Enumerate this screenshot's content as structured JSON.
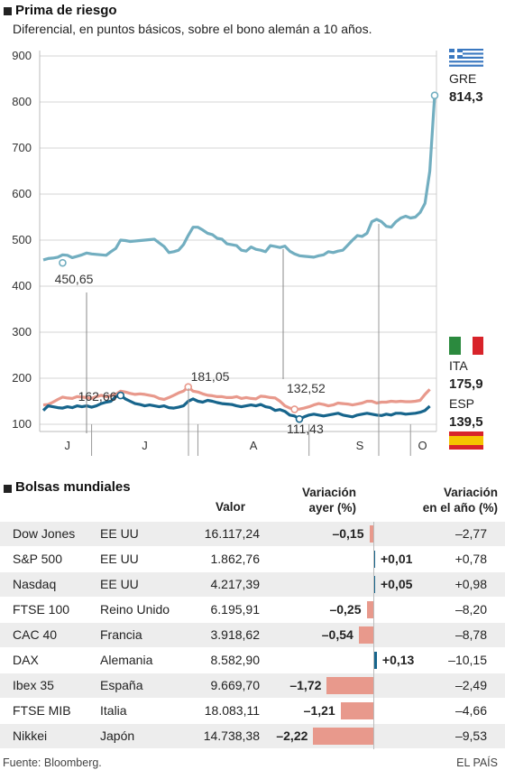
{
  "header": {
    "title": "Prima de riesgo",
    "subtitle": "Diferencial, en puntos básicos, sobre el bono alemán a 10 años."
  },
  "chart_data": {
    "type": "line",
    "title": "Prima de riesgo",
    "subtitle": "Diferencial, en puntos básicos, sobre el bono alemán a 10 años.",
    "ylim": [
      95,
      905
    ],
    "y_ticks": [
      100,
      200,
      300,
      400,
      500,
      600,
      700,
      800,
      900
    ],
    "x_month_labels": [
      "J",
      "J",
      "A",
      "S",
      "O"
    ],
    "grid": "horizontal",
    "colors": {
      "GRE": "#72aec0",
      "ITA": "#e8998c",
      "ESP": "#17658c"
    },
    "series": [
      {
        "name": "GRE",
        "value_label": "814,3",
        "values": [
          457,
          460,
          461,
          463,
          468,
          467,
          462,
          465,
          468,
          472,
          470,
          469,
          468,
          467,
          475,
          482,
          500,
          499,
          497,
          498,
          499,
          500,
          501,
          502,
          494,
          486,
          473,
          475,
          478,
          490,
          510,
          528,
          528,
          522,
          515,
          512,
          504,
          502,
          492,
          490,
          488,
          478,
          476,
          485,
          480,
          478,
          475,
          488,
          486,
          484,
          487,
          476,
          470,
          466,
          465,
          464,
          463,
          466,
          468,
          475,
          473,
          476,
          478,
          489,
          500,
          510,
          508,
          515,
          540,
          545,
          540,
          530,
          528,
          540,
          548,
          552,
          548,
          550,
          560,
          580,
          650,
          814.3
        ]
      },
      {
        "name": "ITA",
        "value_label": "175,9",
        "values": [
          142,
          143,
          148,
          154,
          159,
          157,
          156,
          160,
          159,
          158,
          156,
          160,
          163,
          160,
          162,
          165,
          172,
          170,
          167,
          165,
          166,
          165,
          163,
          161,
          156,
          154,
          158,
          163,
          168,
          172,
          181.05,
          172,
          170,
          166,
          163,
          162,
          160,
          160,
          158,
          158,
          160,
          156,
          158,
          156,
          155,
          161,
          160,
          158,
          157,
          150,
          140,
          135,
          132.52,
          133,
          135,
          138,
          142,
          145,
          143,
          140,
          142,
          146,
          145,
          144,
          142,
          144,
          146,
          150,
          150,
          146,
          148,
          148,
          150,
          149,
          150,
          149,
          149,
          150,
          152,
          165,
          175.9
        ]
      },
      {
        "name": "ESP",
        "value_label": "139,5",
        "values": [
          130,
          140,
          138,
          136,
          135,
          138,
          136,
          140,
          138,
          140,
          137,
          140,
          145,
          148,
          150,
          160,
          162.66,
          155,
          150,
          145,
          143,
          140,
          142,
          140,
          138,
          140,
          136,
          135,
          137,
          140,
          150,
          155,
          150,
          148,
          152,
          150,
          147,
          145,
          144,
          143,
          140,
          138,
          140,
          142,
          140,
          143,
          138,
          136,
          130,
          132,
          128,
          120,
          118,
          111.43,
          116,
          120,
          122,
          120,
          118,
          120,
          122,
          124,
          120,
          118,
          116,
          120,
          122,
          124,
          122,
          120,
          119,
          122,
          120,
          124,
          124,
          122,
          123,
          124,
          126,
          130,
          139.5
        ]
      }
    ],
    "annotations": [
      {
        "label": "450,65",
        "series": "GRE",
        "value": 450.65
      },
      {
        "label": "162,66",
        "series": "ESP",
        "value": 162.66
      },
      {
        "label": "181,05",
        "series": "ITA",
        "value": 181.05
      },
      {
        "label": "132,52",
        "series": "ITA",
        "value": 132.52
      },
      {
        "label": "111,43",
        "series": "ESP",
        "value": 111.43
      }
    ]
  },
  "markets": {
    "title": "Bolsas mundiales",
    "col_value": "Valor",
    "col_daily_1": "Variación",
    "col_daily_2": "ayer (%)",
    "col_year_1": "Variación",
    "col_year_2": "en el año (%)",
    "bar_colors": {
      "negative": "#e8998c",
      "positive": "#17658c"
    },
    "rows": [
      {
        "name": "Dow Jones",
        "country": "EE UU",
        "value": "16.117,24",
        "daily": "–0,15",
        "daily_num": -0.15,
        "year": "–2,77"
      },
      {
        "name": "S&P 500",
        "country": "EE UU",
        "value": "1.862,76",
        "daily": "+0,01",
        "daily_num": 0.01,
        "year": "+0,78"
      },
      {
        "name": "Nasdaq",
        "country": "EE UU",
        "value": "4.217,39",
        "daily": "+0,05",
        "daily_num": 0.05,
        "year": "+0,98"
      },
      {
        "name": "FTSE 100",
        "country": "Reino Unido",
        "value": "6.195,91",
        "daily": "–0,25",
        "daily_num": -0.25,
        "year": "–8,20"
      },
      {
        "name": "CAC 40",
        "country": "Francia",
        "value": "3.918,62",
        "daily": "–0,54",
        "daily_num": -0.54,
        "year": "–8,78"
      },
      {
        "name": "DAX",
        "country": "Alemania",
        "value": "8.582,90",
        "daily": "+0,13",
        "daily_num": 0.13,
        "year": "–10,15"
      },
      {
        "name": "Ibex 35",
        "country": "España",
        "value": "9.669,70",
        "daily": "–1,72",
        "daily_num": -1.72,
        "year": "–2,49"
      },
      {
        "name": "FTSE MIB",
        "country": "Italia",
        "value": "18.083,11",
        "daily": "–1,21",
        "daily_num": -1.21,
        "year": "–4,66"
      },
      {
        "name": "Nikkei",
        "country": "Japón",
        "value": "14.738,38",
        "daily": "–2,22",
        "daily_num": -2.22,
        "year": "–9,53"
      }
    ]
  },
  "footer": {
    "source": "Fuente: Bloomberg.",
    "brand": "EL PAÍS"
  }
}
